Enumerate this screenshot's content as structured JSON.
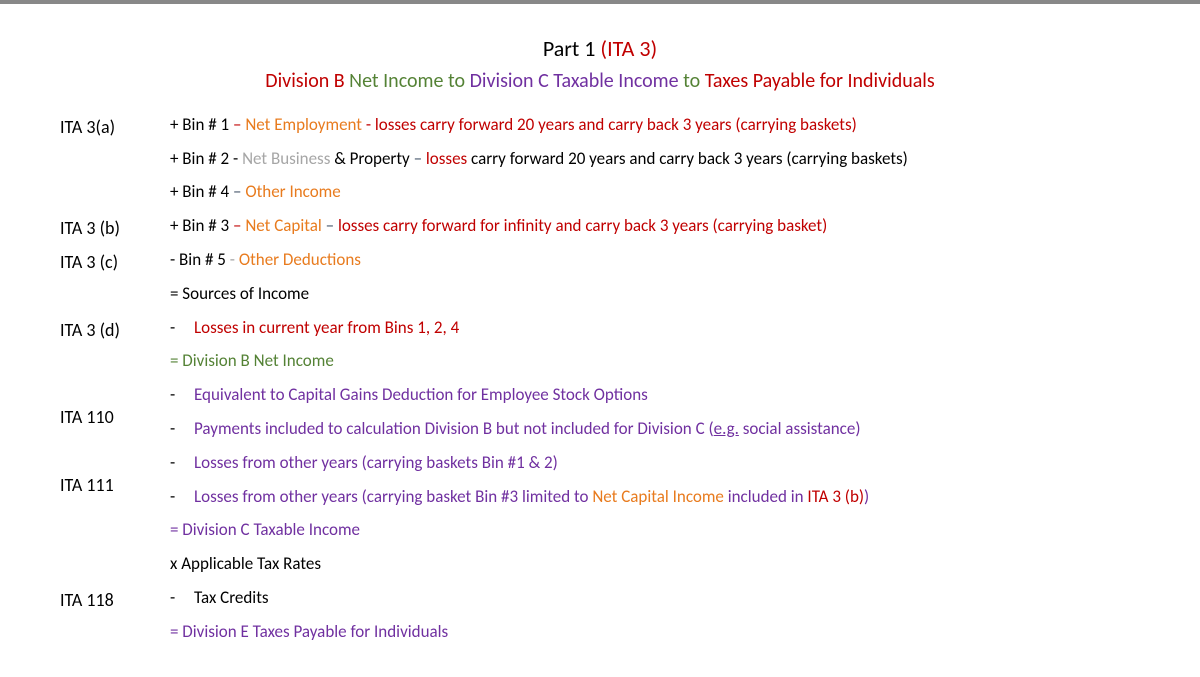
{
  "colors": {
    "black": "#000000",
    "orange": "#e87b1e",
    "red": "#c00000",
    "green": "#548235",
    "purple": "#7030a0",
    "grey": "#a6a6a6",
    "bluegrey": "#44546a"
  },
  "title": {
    "part1": "Part 1 ",
    "ita3": "(ITA 3)",
    "divB": "Division B ",
    "netIncome": " Net Income to  ",
    "divC": "Division C Taxable Income ",
    "to": "to ",
    "taxes": "Taxes Payable for Individuals"
  },
  "labels": {
    "ita3a": "ITA 3(a)",
    "ita3b": "ITA 3 (b)",
    "ita3c": "ITA 3 (c)",
    "ita3d": "ITA 3 (d)",
    "ita110": "ITA 110",
    "ita111": "ITA 111",
    "ita118": "ITA 118"
  },
  "rows": {
    "bin1": {
      "pre": "+ Bin # 1 ",
      "dash": "– ",
      "ne": "Net Employment ",
      "rest": "- losses carry forward 20 years and carry back 3 years (carrying baskets)"
    },
    "bin2": {
      "pre": "+ Bin # 2 -  ",
      "nb": "Net Business ",
      "amp": "& Property ",
      "dash": "– ",
      "losses": "losses ",
      "rest": "carry forward 20 years and carry back 3 years (carrying baskets)"
    },
    "bin4": {
      "pre": "+ Bin # 4 ",
      "dash": "– ",
      "oi": "Other Income"
    },
    "bin3": {
      "pre": "+ Bin # 3 ",
      "dash": "– ",
      "nc": "Net Capital ",
      "sep": "–  ",
      "rest": "losses carry forward for infinity and carry back 3 years (carrying basket)"
    },
    "bin5": {
      "pre": "- Bin # 5 ",
      "dash": "-  ",
      "od": "Other Deductions"
    },
    "sources": "= Sources of Income",
    "lossesCurrent": "Losses in current year from Bins 1, 2, 4",
    "divBNet": "= Division B Net Income",
    "equivCG": "Equivalent to Capital Gains Deduction for Employee Stock Options",
    "payments": {
      "pre": "Payments included to calculation Division B but not included for Division C (",
      "eg": "e.g.",
      "post": " social assistance)"
    },
    "losses12": "Losses from other years (carrying baskets Bin #1 & 2)",
    "losses3": {
      "pre": "Losses from other years (carrying basket Bin #3 limited to ",
      "nci": "Net Capital Income ",
      "inc": "included in ",
      "ita3b": "ITA 3 (b)",
      "post": ")"
    },
    "divCTax": "= Division C Taxable Income",
    "taxRates": "x Applicable Tax Rates",
    "taxCredits": "Tax Credits",
    "divETaxes": "= Division E Taxes Payable for Individuals"
  }
}
